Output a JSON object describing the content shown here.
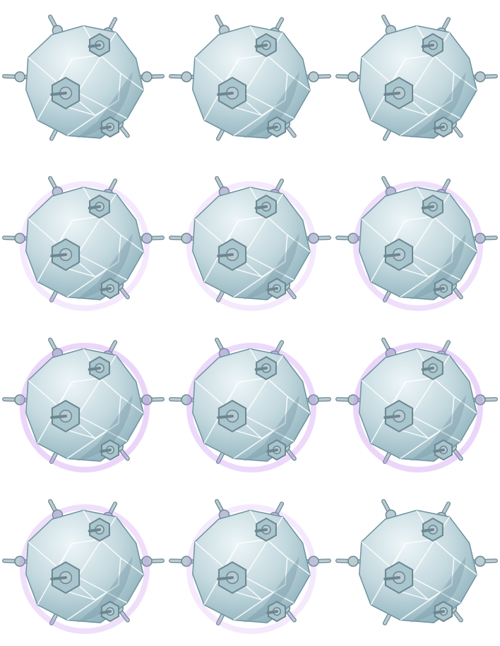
{
  "sprite_sheet": {
    "subject": "sea-mine-sprite",
    "columns": 3,
    "rows": 4,
    "colors": {
      "body_light": "#eef6f8",
      "body_mid": "#c4d9df",
      "body_dark": "#8fb2bd",
      "body_shadow": "#6f93a0",
      "edge": "#ffffff",
      "spike": "#b9ccd3",
      "spike_dark": "#6d8791",
      "bolt_plate": "#a9c5ce",
      "glow": "#c68cf2"
    },
    "frames": [
      {
        "index": 1,
        "glow": 0.0
      },
      {
        "index": 2,
        "glow": 0.0
      },
      {
        "index": 3,
        "glow": 0.0
      },
      {
        "index": 4,
        "glow": 0.35
      },
      {
        "index": 5,
        "glow": 0.35
      },
      {
        "index": 6,
        "glow": 0.5
      },
      {
        "index": 7,
        "glow": 0.65
      },
      {
        "index": 8,
        "glow": 0.6
      },
      {
        "index": 9,
        "glow": 0.65
      },
      {
        "index": 10,
        "glow": 0.5
      },
      {
        "index": 11,
        "glow": 0.35
      },
      {
        "index": 12,
        "glow": 0.0
      }
    ]
  }
}
